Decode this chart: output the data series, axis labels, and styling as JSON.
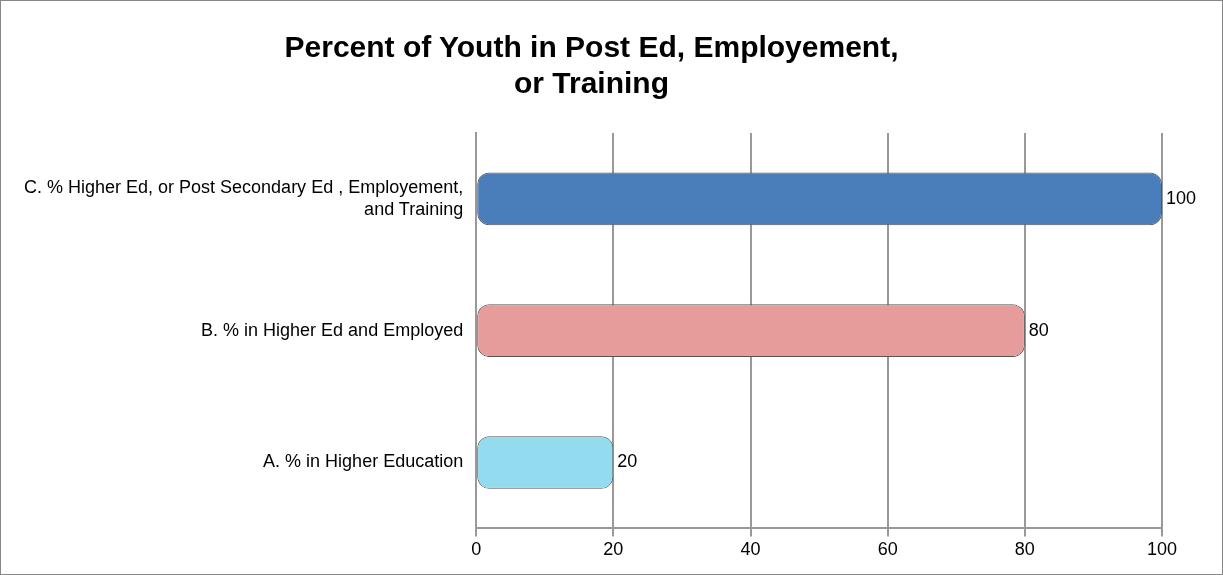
{
  "chart_data": {
    "type": "bar",
    "orientation": "horizontal",
    "title": "Percent of Youth in Post Ed, Employement, or Training",
    "categories": [
      "C. % Higher Ed, or Post Secondary Ed , Employement, and Training",
      "B. % in Higher Ed and Employed",
      "A. % in Higher Education"
    ],
    "values": [
      100,
      80,
      20
    ],
    "colors": [
      "#4a7ebb",
      "#e59c9b",
      "#93dcef"
    ],
    "xlim": [
      0,
      100
    ],
    "xticks": [
      0,
      20,
      40,
      60,
      80,
      100
    ],
    "grid": "x",
    "data_labels": true,
    "legend": false
  }
}
